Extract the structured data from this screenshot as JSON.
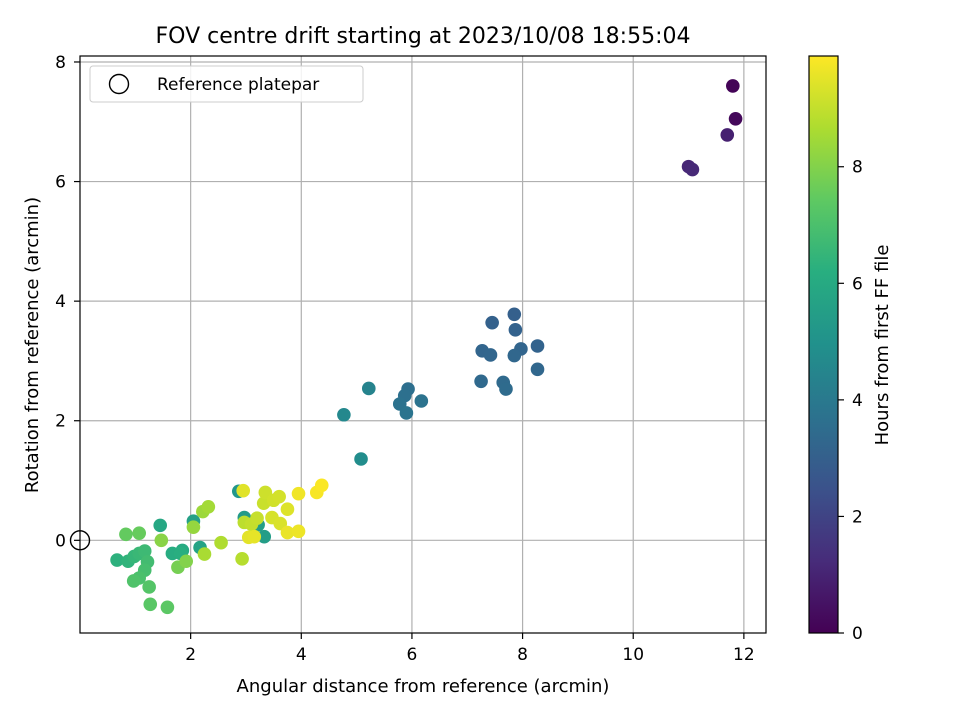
{
  "chart_data": {
    "type": "scatter",
    "title": "FOV centre drift starting at 2023/10/08 18:55:04",
    "xlabel": "Angular distance from reference (arcmin)",
    "ylabel": "Rotation from reference (arcmin)",
    "xlim": [
      0,
      12.4
    ],
    "ylim": [
      -1.55,
      8.1
    ],
    "xticks": [
      2,
      4,
      6,
      8,
      10,
      12
    ],
    "yticks": [
      0,
      2,
      4,
      6,
      8
    ],
    "grid": true,
    "legend": {
      "position": "top-left",
      "entries": [
        "Reference platepar"
      ]
    },
    "reference_point": {
      "x": 0,
      "y": 0,
      "label": "Reference platepar"
    },
    "colorbar": {
      "label": "Hours from first FF file",
      "colormap": "viridis",
      "range": [
        0,
        9.9
      ],
      "ticks": [
        0,
        2,
        4,
        6,
        8
      ]
    },
    "points": [
      {
        "x": 11.8,
        "y": 7.6,
        "c": 0.1
      },
      {
        "x": 11.85,
        "y": 7.05,
        "c": 0.2
      },
      {
        "x": 11.7,
        "y": 6.78,
        "c": 0.9
      },
      {
        "x": 11.0,
        "y": 6.25,
        "c": 1.1
      },
      {
        "x": 11.07,
        "y": 6.2,
        "c": 1.15
      },
      {
        "x": 7.85,
        "y": 3.78,
        "c": 3.0
      },
      {
        "x": 7.45,
        "y": 3.64,
        "c": 3.05
      },
      {
        "x": 7.87,
        "y": 3.52,
        "c": 3.1
      },
      {
        "x": 8.27,
        "y": 3.25,
        "c": 3.15
      },
      {
        "x": 7.27,
        "y": 3.17,
        "c": 3.2
      },
      {
        "x": 7.97,
        "y": 3.2,
        "c": 3.2
      },
      {
        "x": 7.42,
        "y": 3.1,
        "c": 3.25
      },
      {
        "x": 7.85,
        "y": 3.09,
        "c": 3.3
      },
      {
        "x": 8.27,
        "y": 2.86,
        "c": 3.3
      },
      {
        "x": 7.25,
        "y": 2.66,
        "c": 3.35
      },
      {
        "x": 7.65,
        "y": 2.64,
        "c": 3.4
      },
      {
        "x": 7.7,
        "y": 2.53,
        "c": 3.45
      },
      {
        "x": 5.93,
        "y": 2.53,
        "c": 3.6
      },
      {
        "x": 5.87,
        "y": 2.42,
        "c": 3.65
      },
      {
        "x": 5.78,
        "y": 2.28,
        "c": 3.7
      },
      {
        "x": 6.17,
        "y": 2.33,
        "c": 3.75
      },
      {
        "x": 5.9,
        "y": 2.13,
        "c": 3.8
      },
      {
        "x": 5.22,
        "y": 2.54,
        "c": 4.4
      },
      {
        "x": 4.77,
        "y": 2.1,
        "c": 4.6
      },
      {
        "x": 5.08,
        "y": 1.36,
        "c": 4.8
      },
      {
        "x": 2.87,
        "y": 0.82,
        "c": 5.2
      },
      {
        "x": 2.97,
        "y": 0.38,
        "c": 5.35
      },
      {
        "x": 3.33,
        "y": 0.06,
        "c": 5.45
      },
      {
        "x": 3.22,
        "y": 0.26,
        "c": 5.5
      },
      {
        "x": 2.05,
        "y": 0.32,
        "c": 5.6
      },
      {
        "x": 2.17,
        "y": -0.12,
        "c": 5.7
      },
      {
        "x": 1.45,
        "y": 0.25,
        "c": 5.9
      },
      {
        "x": 1.85,
        "y": -0.17,
        "c": 6.0
      },
      {
        "x": 1.67,
        "y": -0.22,
        "c": 6.1
      },
      {
        "x": 1.82,
        "y": -0.22,
        "c": 6.2
      },
      {
        "x": 0.67,
        "y": -0.33,
        "c": 6.3
      },
      {
        "x": 0.87,
        "y": -0.35,
        "c": 6.4
      },
      {
        "x": 0.98,
        "y": -0.27,
        "c": 6.5
      },
      {
        "x": 1.07,
        "y": -0.22,
        "c": 6.6
      },
      {
        "x": 1.17,
        "y": -0.18,
        "c": 6.7
      },
      {
        "x": 1.22,
        "y": -0.36,
        "c": 6.8
      },
      {
        "x": 1.17,
        "y": -0.5,
        "c": 6.9
      },
      {
        "x": 1.07,
        "y": -0.63,
        "c": 7.0
      },
      {
        "x": 0.97,
        "y": -0.68,
        "c": 7.1
      },
      {
        "x": 1.25,
        "y": -0.78,
        "c": 7.2
      },
      {
        "x": 1.27,
        "y": -1.07,
        "c": 7.3
      },
      {
        "x": 1.58,
        "y": -1.12,
        "c": 7.35
      },
      {
        "x": 0.83,
        "y": 0.1,
        "c": 7.5
      },
      {
        "x": 1.07,
        "y": 0.12,
        "c": 7.55
      },
      {
        "x": 1.77,
        "y": -0.45,
        "c": 7.8
      },
      {
        "x": 1.92,
        "y": -0.35,
        "c": 8.0
      },
      {
        "x": 1.47,
        "y": 0.0,
        "c": 8.1
      },
      {
        "x": 2.05,
        "y": 0.22,
        "c": 8.3
      },
      {
        "x": 2.22,
        "y": 0.48,
        "c": 8.4
      },
      {
        "x": 2.32,
        "y": 0.56,
        "c": 8.5
      },
      {
        "x": 2.25,
        "y": -0.23,
        "c": 8.6
      },
      {
        "x": 2.55,
        "y": -0.04,
        "c": 8.7
      },
      {
        "x": 2.93,
        "y": -0.31,
        "c": 8.8
      },
      {
        "x": 2.97,
        "y": 0.3,
        "c": 8.9
      },
      {
        "x": 3.1,
        "y": 0.27,
        "c": 9.0
      },
      {
        "x": 3.2,
        "y": 0.37,
        "c": 9.05
      },
      {
        "x": 3.32,
        "y": 0.62,
        "c": 9.1
      },
      {
        "x": 3.35,
        "y": 0.8,
        "c": 9.15
      },
      {
        "x": 3.5,
        "y": 0.67,
        "c": 9.2
      },
      {
        "x": 3.6,
        "y": 0.73,
        "c": 9.25
      },
      {
        "x": 3.47,
        "y": 0.38,
        "c": 9.3
      },
      {
        "x": 3.62,
        "y": 0.28,
        "c": 9.35
      },
      {
        "x": 3.75,
        "y": 0.52,
        "c": 9.4
      },
      {
        "x": 2.95,
        "y": 0.83,
        "c": 9.45
      },
      {
        "x": 3.05,
        "y": 0.05,
        "c": 9.5
      },
      {
        "x": 3.15,
        "y": 0.06,
        "c": 9.55
      },
      {
        "x": 3.75,
        "y": 0.13,
        "c": 9.6
      },
      {
        "x": 3.95,
        "y": 0.15,
        "c": 9.65
      },
      {
        "x": 3.95,
        "y": 0.78,
        "c": 9.7
      },
      {
        "x": 4.28,
        "y": 0.8,
        "c": 9.8
      },
      {
        "x": 4.37,
        "y": 0.92,
        "c": 9.85
      }
    ]
  }
}
